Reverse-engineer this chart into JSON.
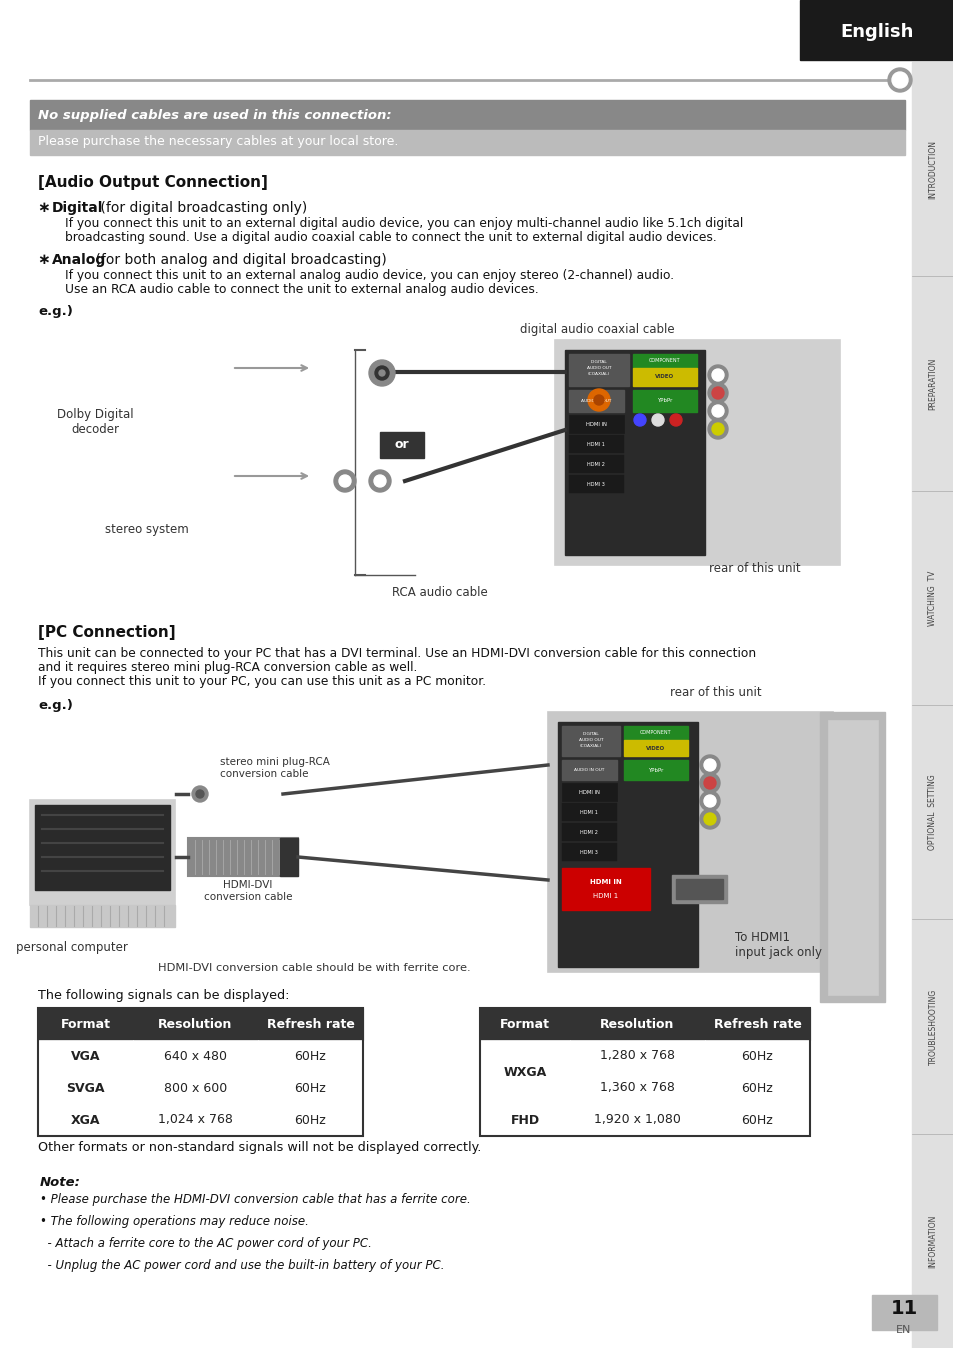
{
  "page_bg": "#ffffff",
  "header_black_bg": "#1a1a1a",
  "header_text": "English",
  "sidebar_bg": "#cccccc",
  "sidebar_labels": [
    "INTRODUCTION",
    "PREPARATION",
    "WATCHING  TV",
    "OPTIONAL  SETTING",
    "TROUBLESHOOTING",
    "INFORMATION"
  ],
  "notice_dark_bg": "#888888",
  "notice_dark_text": "No supplied cables are used in this connection:",
  "notice_light_bg": "#bbbbbb",
  "notice_light_text": "Please purchase the necessary cables at your local store.",
  "section1_title": "[Audio Output Connection]",
  "digital_bold": "Digital",
  "digital_rest": " (for digital broadcasting only)",
  "analog_bold": "Analog",
  "analog_rest": " (for both analog and digital broadcasting)",
  "eg_label": "e.g.)",
  "dolby_label": "Dolby Digital\ndecoder",
  "stereo_label": "stereo system",
  "digital_cable_label": "digital audio coaxial cable",
  "rca_cable_label": "RCA audio cable",
  "rear_label1": "rear of this unit",
  "section2_title": "[PC Connection]",
  "pc_desc1": "This unit can be connected to your PC that has a DVI terminal. Use an HDMI-DVI conversion cable for this connection",
  "pc_desc2": "and it requires stereo mini plug-RCA conversion cable as well.",
  "pc_desc3": "If you connect this unit to your PC, you can use this unit as a PC monitor.",
  "rear_label2": "rear of this unit",
  "stereo_mini_label": "stereo mini plug-RCA\nconversion cable",
  "hdmi_dvi_label": "HDMI-DVI\nconversion cable",
  "personal_computer_label": "personal computer",
  "ferrite_label": "HDMI-DVI conversion cable should be with ferrite core.",
  "to_hdmi_label": "To HDMI1\ninput jack only",
  "signals_text": "The following signals can be displayed:",
  "table1_headers": [
    "Format",
    "Resolution",
    "Refresh rate"
  ],
  "table1_data": [
    [
      "VGA",
      "640 x 480",
      "60Hz"
    ],
    [
      "SVGA",
      "800 x 600",
      "60Hz"
    ],
    [
      "XGA",
      "1,024 x 768",
      "60Hz"
    ]
  ],
  "table2_headers": [
    "Format",
    "Resolution",
    "Refresh rate"
  ],
  "table2_data": [
    [
      "WXGA",
      "1,280 x 768",
      "60Hz"
    ],
    [
      "",
      "1,360 x 768",
      "60Hz"
    ],
    [
      "FHD",
      "1,920 x 1,080",
      "60Hz"
    ]
  ],
  "other_formats_text": "Other formats or non-standard signals will not be displayed correctly.",
  "note_title": "Note:",
  "note_lines": [
    "• Please purchase the HDMI-DVI conversion cable that has a ferrite core.",
    "• The following operations may reduce noise.",
    "  - Attach a ferrite core to the AC power cord of your PC.",
    "  - Unplug the AC power cord and use the built-in battery of your PC."
  ],
  "page_number": "11",
  "page_en": "EN"
}
